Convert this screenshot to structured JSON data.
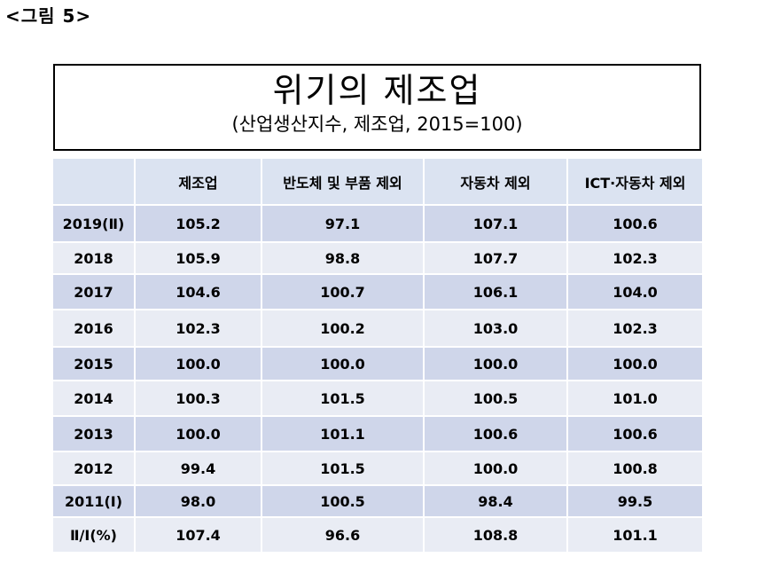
{
  "figure_label": "<그림 5>",
  "title": "위기의 제조업",
  "subtitle": "(산업생산지수, 제조업, 2015=100)",
  "table": {
    "headers": [
      "",
      "제조업",
      "반도체 및 부품 제외",
      "자동차 제외",
      "ICT·자동차 제외"
    ],
    "rows": [
      {
        "year": "2019(Ⅱ)",
        "v1": "105.2",
        "v2": "97.1",
        "v3": "107.1",
        "v4": "100.6"
      },
      {
        "year": "2018",
        "v1": "105.9",
        "v2": "98.8",
        "v3": "107.7",
        "v4": "102.3"
      },
      {
        "year": "2017",
        "v1": "104.6",
        "v2": "100.7",
        "v3": "106.1",
        "v4": "104.0"
      },
      {
        "year": "2016",
        "v1": "102.3",
        "v2": "100.2",
        "v3": "103.0",
        "v4": "102.3"
      },
      {
        "year": "2015",
        "v1": "100.0",
        "v2": "100.0",
        "v3": "100.0",
        "v4": "100.0"
      },
      {
        "year": "2014",
        "v1": "100.3",
        "v2": "101.5",
        "v3": "100.5",
        "v4": "101.0"
      },
      {
        "year": "2013",
        "v1": "100.0",
        "v2": "101.1",
        "v3": "100.6",
        "v4": "100.6"
      },
      {
        "year": "2012",
        "v1": "99.4",
        "v2": "101.5",
        "v3": "100.0",
        "v4": "100.8"
      },
      {
        "year": "2011(Ⅰ)",
        "v1": "98.0",
        "v2": "100.5",
        "v3": "98.4",
        "v4": "99.5"
      },
      {
        "year": "Ⅱ/Ⅰ(%)",
        "v1": "107.4",
        "v2": "96.6",
        "v3": "108.8",
        "v4": "101.1"
      }
    ]
  },
  "colors": {
    "header_bg": "#dbe3f1",
    "row_dark": "#cfd6ea",
    "row_light": "#e9ecf4"
  }
}
